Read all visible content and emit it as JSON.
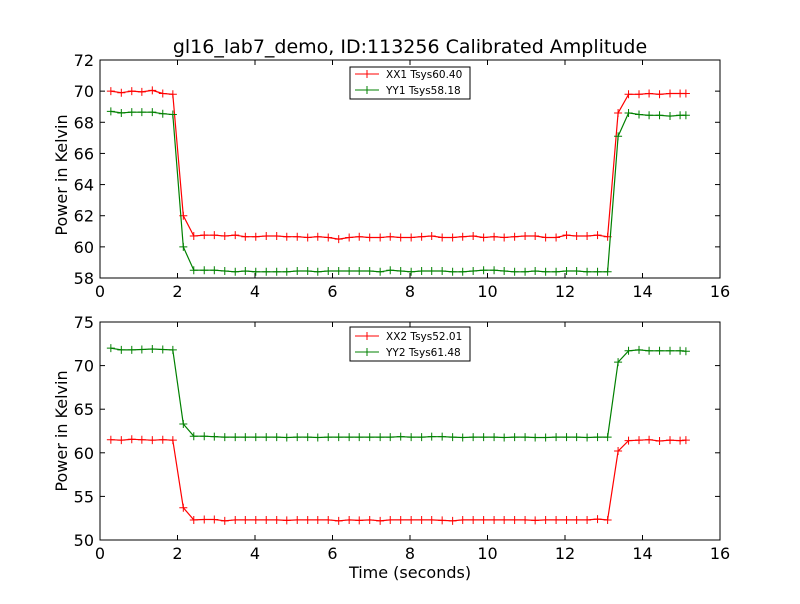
{
  "chart_data": [
    {
      "type": "line",
      "title": "gl16_lab7_demo, ID:113256 Calibrated Amplitude",
      "xlabel": "",
      "ylabel": "Power in Kelvin",
      "xlim": [
        0,
        16
      ],
      "ylim": [
        58,
        72
      ],
      "xticks": [
        0,
        2,
        4,
        6,
        8,
        10,
        12,
        14,
        16
      ],
      "yticks": [
        58,
        60,
        62,
        64,
        66,
        68,
        70,
        72
      ],
      "legend_position": "top-center",
      "x": [
        0.28,
        0.55,
        0.82,
        1.08,
        1.35,
        1.62,
        1.88,
        2.15,
        2.42,
        2.69,
        2.95,
        3.22,
        3.49,
        3.75,
        4.02,
        4.29,
        4.56,
        4.82,
        5.09,
        5.36,
        5.62,
        5.89,
        6.16,
        6.43,
        6.69,
        6.96,
        7.23,
        7.49,
        7.76,
        8.03,
        8.3,
        8.56,
        8.83,
        9.1,
        9.36,
        9.63,
        9.9,
        10.17,
        10.43,
        10.7,
        10.97,
        11.23,
        11.5,
        11.77,
        12.04,
        12.3,
        12.57,
        12.84,
        13.1,
        13.37,
        13.64,
        13.91,
        14.17,
        14.44,
        14.71,
        14.97,
        15.12
      ],
      "series": [
        {
          "name": "XX1 Tsys60.40",
          "color": "#ff0000",
          "values": [
            70.0,
            69.9,
            70.0,
            69.95,
            70.05,
            69.85,
            69.8,
            62.0,
            60.7,
            60.75,
            60.75,
            60.7,
            60.75,
            60.65,
            60.65,
            60.7,
            60.7,
            60.65,
            60.65,
            60.6,
            60.65,
            60.6,
            60.5,
            60.6,
            60.65,
            60.6,
            60.6,
            60.65,
            60.6,
            60.6,
            60.65,
            60.7,
            60.6,
            60.6,
            60.65,
            60.7,
            60.6,
            60.65,
            60.6,
            60.65,
            60.7,
            60.7,
            60.6,
            60.6,
            60.75,
            60.7,
            60.7,
            60.75,
            60.65,
            68.6,
            69.8,
            69.8,
            69.85,
            69.8,
            69.85,
            69.85,
            69.85
          ]
        },
        {
          "name": "YY1 Tsys58.18",
          "color": "#008000",
          "values": [
            68.7,
            68.6,
            68.65,
            68.65,
            68.65,
            68.55,
            68.5,
            60.0,
            58.5,
            58.5,
            58.5,
            58.45,
            58.4,
            58.45,
            58.4,
            58.4,
            58.4,
            58.4,
            58.45,
            58.45,
            58.4,
            58.45,
            58.45,
            58.45,
            58.45,
            58.45,
            58.4,
            58.5,
            58.45,
            58.4,
            58.45,
            58.45,
            58.45,
            58.4,
            58.4,
            58.45,
            58.5,
            58.5,
            58.45,
            58.4,
            58.4,
            58.45,
            58.4,
            58.4,
            58.45,
            58.45,
            58.4,
            58.4,
            58.4,
            67.1,
            68.6,
            68.5,
            68.45,
            68.45,
            68.4,
            68.45,
            68.45
          ]
        }
      ]
    },
    {
      "type": "line",
      "title": "",
      "xlabel": "Time (seconds)",
      "ylabel": "Power in Kelvin",
      "xlim": [
        0,
        16
      ],
      "ylim": [
        50,
        75
      ],
      "xticks": [
        0,
        2,
        4,
        6,
        8,
        10,
        12,
        14,
        16
      ],
      "yticks": [
        50,
        55,
        60,
        65,
        70,
        75
      ],
      "legend_position": "top-center",
      "x": [
        0.28,
        0.55,
        0.82,
        1.08,
        1.35,
        1.62,
        1.88,
        2.15,
        2.42,
        2.69,
        2.95,
        3.22,
        3.49,
        3.75,
        4.02,
        4.29,
        4.56,
        4.82,
        5.09,
        5.36,
        5.62,
        5.89,
        6.16,
        6.43,
        6.69,
        6.96,
        7.23,
        7.49,
        7.76,
        8.03,
        8.3,
        8.56,
        8.83,
        9.1,
        9.36,
        9.63,
        9.9,
        10.17,
        10.43,
        10.7,
        10.97,
        11.23,
        11.5,
        11.77,
        12.04,
        12.3,
        12.57,
        12.84,
        13.1,
        13.37,
        13.64,
        13.91,
        14.17,
        14.44,
        14.71,
        14.97,
        15.12
      ],
      "series": [
        {
          "name": "XX2 Tsys52.01",
          "color": "#ff0000",
          "values": [
            61.5,
            61.45,
            61.55,
            61.5,
            61.45,
            61.5,
            61.45,
            53.7,
            52.3,
            52.35,
            52.35,
            52.2,
            52.3,
            52.3,
            52.3,
            52.3,
            52.3,
            52.25,
            52.3,
            52.3,
            52.3,
            52.3,
            52.2,
            52.3,
            52.25,
            52.3,
            52.2,
            52.3,
            52.3,
            52.3,
            52.3,
            52.3,
            52.25,
            52.2,
            52.3,
            52.3,
            52.3,
            52.3,
            52.3,
            52.3,
            52.3,
            52.25,
            52.3,
            52.3,
            52.3,
            52.3,
            52.3,
            52.4,
            52.3,
            60.2,
            61.4,
            61.45,
            61.5,
            61.35,
            61.45,
            61.4,
            61.45
          ]
        },
        {
          "name": "YY2 Tsys61.48",
          "color": "#008000",
          "values": [
            72.0,
            71.8,
            71.8,
            71.85,
            71.9,
            71.85,
            71.8,
            63.3,
            61.9,
            61.9,
            61.85,
            61.8,
            61.8,
            61.8,
            61.8,
            61.8,
            61.8,
            61.75,
            61.8,
            61.8,
            61.75,
            61.8,
            61.8,
            61.8,
            61.8,
            61.8,
            61.8,
            61.8,
            61.85,
            61.8,
            61.8,
            61.85,
            61.85,
            61.8,
            61.75,
            61.8,
            61.8,
            61.8,
            61.75,
            61.8,
            61.8,
            61.75,
            61.75,
            61.8,
            61.8,
            61.8,
            61.75,
            61.8,
            61.8,
            70.4,
            71.7,
            71.8,
            71.7,
            71.7,
            71.7,
            71.7,
            71.65
          ]
        }
      ]
    }
  ]
}
